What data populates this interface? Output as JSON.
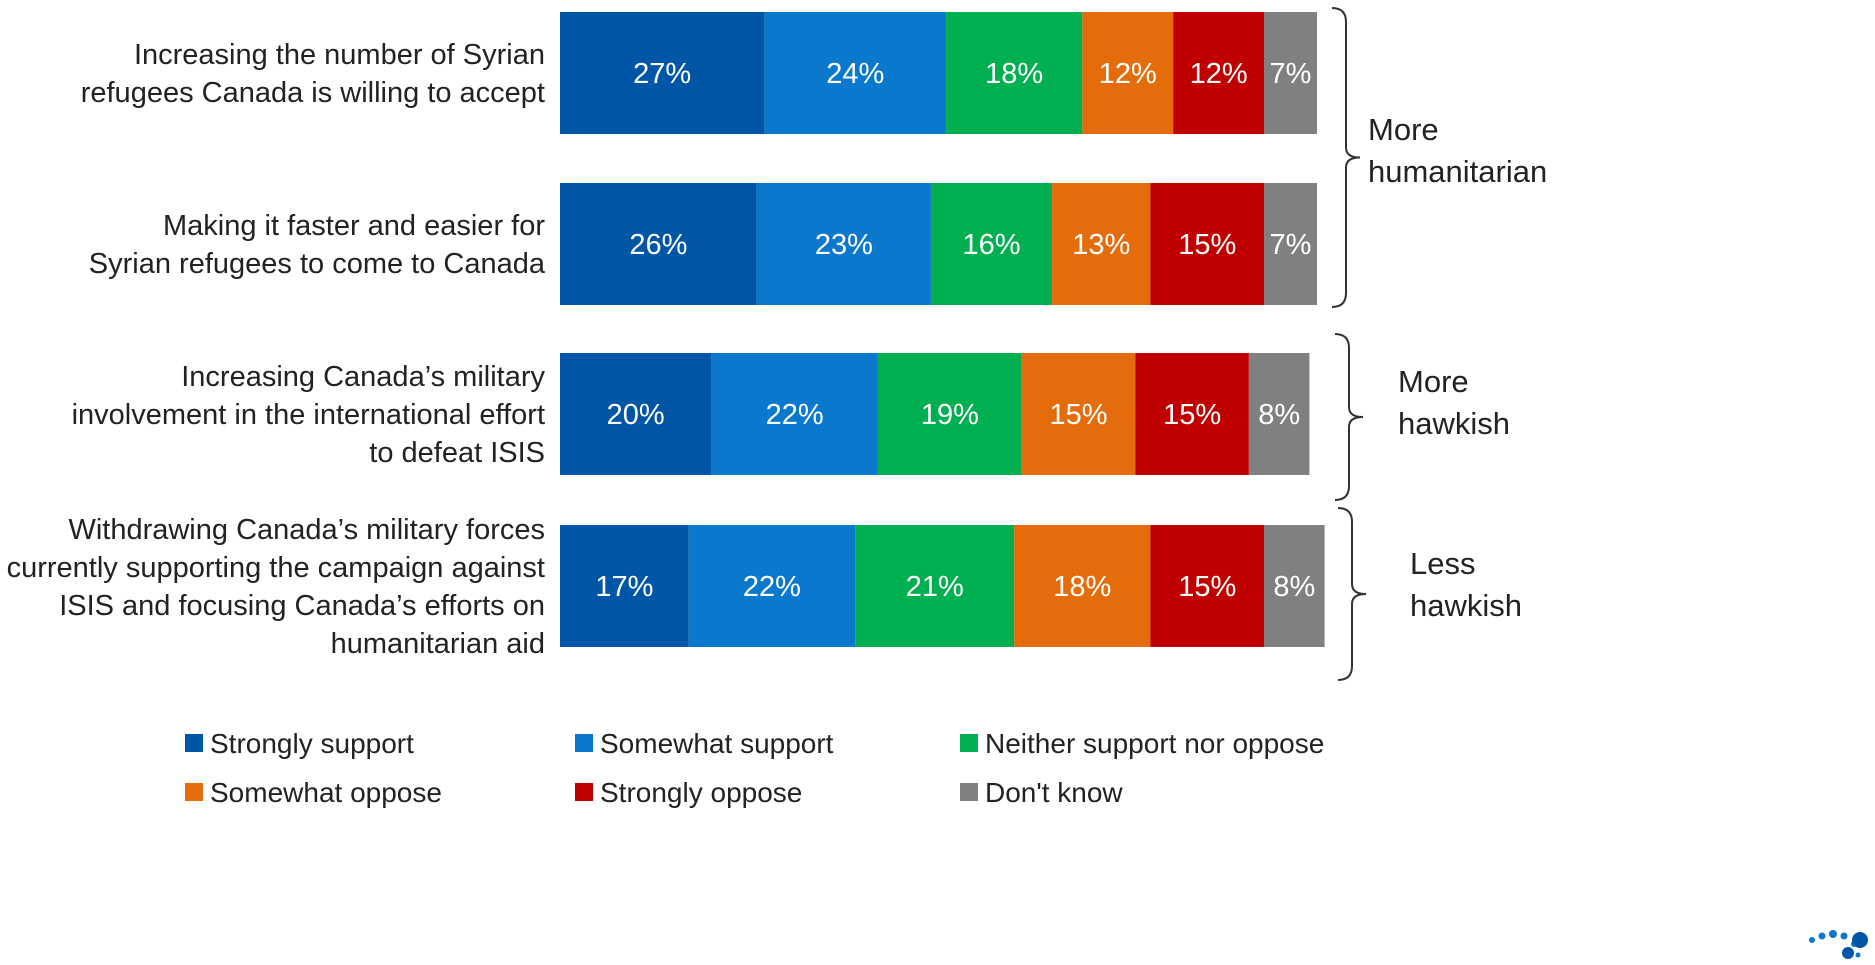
{
  "chart_data": {
    "type": "bar",
    "orientation": "horizontal",
    "stacked": true,
    "unit": "%",
    "categories": [
      [
        "Increasing the number of Syrian",
        "refugees Canada is willing to accept"
      ],
      [
        "Making it faster and easier for",
        "Syrian refugees to come to Canada"
      ],
      [
        "Increasing Canada’s military",
        "involvement in the international effort",
        "to defeat ISIS"
      ],
      [
        "Withdrawing Canada’s military forces",
        "currently supporting the campaign against",
        "ISIS and focusing Canada’s efforts on",
        "humanitarian aid"
      ]
    ],
    "series": [
      {
        "name": "Strongly support",
        "color": "#0056a6",
        "values": [
          27,
          26,
          20,
          17
        ],
        "labels": [
          "27%",
          "26%",
          "20%",
          "17%"
        ]
      },
      {
        "name": "Somewhat support",
        "color": "#0a78cc",
        "values": [
          24,
          23,
          22,
          22
        ],
        "labels": [
          "24%",
          "23%",
          "22%",
          "22%"
        ]
      },
      {
        "name": "Neither support nor oppose",
        "color": "#00b050",
        "values": [
          18,
          16,
          19,
          21
        ],
        "labels": [
          "18%",
          "16%",
          "19%",
          "21%"
        ]
      },
      {
        "name": "Somewhat oppose",
        "color": "#e46c0a",
        "values": [
          12,
          13,
          15,
          18
        ],
        "labels": [
          "12%",
          "13%",
          "15%",
          "18%"
        ]
      },
      {
        "name": "Strongly oppose",
        "color": "#c00000",
        "values": [
          12,
          15,
          15,
          15
        ],
        "labels": [
          "12%",
          "15%",
          "15%",
          "15%"
        ]
      },
      {
        "name": "Don't know",
        "color": "#808080",
        "values": [
          7,
          7,
          8,
          8
        ],
        "labels": [
          "7%",
          "7%",
          "8%",
          "8%"
        ]
      }
    ],
    "groups": [
      {
        "label": [
          "More",
          "humanitarian"
        ],
        "rows": [
          0,
          1
        ]
      },
      {
        "label": [
          "More",
          "hawkish"
        ],
        "rows": [
          2
        ]
      },
      {
        "label": [
          "Less",
          "hawkish"
        ],
        "rows": [
          3
        ]
      }
    ],
    "legend_position": "bottom",
    "grid": false
  }
}
